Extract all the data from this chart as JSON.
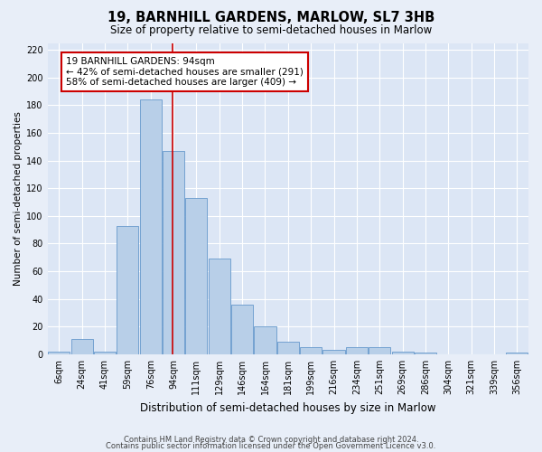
{
  "title": "19, BARNHILL GARDENS, MARLOW, SL7 3HB",
  "subtitle": "Size of property relative to semi-detached houses in Marlow",
  "xlabel": "Distribution of semi-detached houses by size in Marlow",
  "ylabel": "Number of semi-detached properties",
  "footnote1": "Contains HM Land Registry data © Crown copyright and database right 2024.",
  "footnote2": "Contains public sector information licensed under the Open Government Licence v3.0.",
  "annotation_title": "19 BARNHILL GARDENS: 94sqm",
  "annotation_line1": "← 42% of semi-detached houses are smaller (291)",
  "annotation_line2": "58% of semi-detached houses are larger (409) →",
  "bin_labels": [
    "6sqm",
    "24sqm",
    "41sqm",
    "59sqm",
    "76sqm",
    "94sqm",
    "111sqm",
    "129sqm",
    "146sqm",
    "164sqm",
    "181sqm",
    "199sqm",
    "216sqm",
    "234sqm",
    "251sqm",
    "269sqm",
    "286sqm",
    "304sqm",
    "321sqm",
    "339sqm",
    "356sqm"
  ],
  "bar_values": [
    2,
    11,
    2,
    93,
    184,
    147,
    113,
    69,
    36,
    20,
    9,
    5,
    3,
    5,
    5,
    2,
    1,
    0,
    0,
    0,
    1
  ],
  "vline_index": 5,
  "bar_color": "#b8cfe8",
  "bar_edge_color": "#6699cc",
  "vline_color": "#cc0000",
  "annotation_box_color": "#cc0000",
  "background_color": "#dce6f5",
  "fig_color": "#e8eef8",
  "ylim": [
    0,
    225
  ],
  "yticks": [
    0,
    20,
    40,
    60,
    80,
    100,
    120,
    140,
    160,
    180,
    200,
    220
  ],
  "title_fontsize": 10.5,
  "subtitle_fontsize": 8.5,
  "xlabel_fontsize": 8.5,
  "ylabel_fontsize": 7.5,
  "tick_fontsize": 7,
  "annot_fontsize": 7.5,
  "footnote_fontsize": 6.0
}
